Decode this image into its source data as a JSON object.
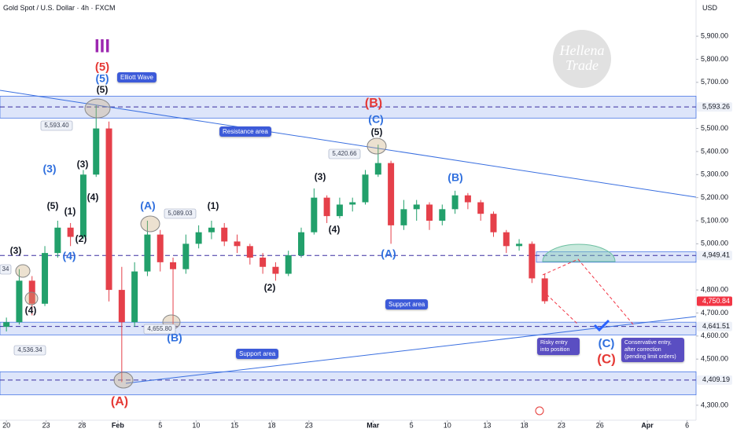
{
  "header": {
    "symbol": "Gold Spot / U.S. Dollar · 4h · FXCM",
    "currency": "USD"
  },
  "watermark": [
    "Hellena",
    "Trade"
  ],
  "chart_data": {
    "type": "candlestick",
    "x": [
      0,
      1,
      2,
      3,
      4,
      5,
      6,
      7,
      8,
      9,
      10,
      11,
      12,
      13,
      14,
      15,
      16,
      17,
      18,
      19,
      20,
      21,
      22,
      23,
      24,
      25,
      26,
      27,
      28,
      29,
      30,
      31,
      32,
      33,
      34,
      35,
      36,
      37,
      38,
      39,
      40,
      41,
      42
    ],
    "open": [
      4640,
      4660,
      4840,
      4740,
      4960,
      5070,
      5030,
      5300,
      5500,
      4800,
      4660,
      4880,
      5040,
      4920,
      4890,
      5000,
      5050,
      5070,
      5010,
      4990,
      4940,
      4900,
      4870,
      4950,
      5050,
      5200,
      5120,
      5170,
      5180,
      5300,
      5350,
      5080,
      5150,
      5170,
      5100,
      5150,
      5210,
      5180,
      5130,
      5050,
      4990,
      5000,
      4850
    ],
    "high": [
      4680,
      4890,
      4860,
      4990,
      5100,
      5090,
      5320,
      5600,
      5530,
      4900,
      4920,
      5100,
      5060,
      4940,
      5040,
      5080,
      5100,
      5090,
      5040,
      5000,
      4960,
      4920,
      4970,
      5070,
      5240,
      5210,
      5200,
      5200,
      5320,
      5430,
      5360,
      5190,
      5190,
      5180,
      5170,
      5230,
      5220,
      5190,
      5140,
      5060,
      5020,
      5010,
      4870
    ],
    "low": [
      4620,
      4650,
      4690,
      4730,
      4940,
      4990,
      5020,
      5290,
      4750,
      4400,
      4640,
      4860,
      4880,
      4650,
      4870,
      4980,
      5020,
      4990,
      4960,
      4910,
      4870,
      4840,
      4860,
      4940,
      5040,
      5090,
      5110,
      5140,
      5170,
      5290,
      5000,
      5060,
      5100,
      5060,
      5080,
      5130,
      5150,
      5100,
      5030,
      4960,
      4970,
      4830,
      4740
    ],
    "close": [
      4660,
      4840,
      4740,
      4960,
      5070,
      5030,
      5300,
      5500,
      4800,
      4660,
      4880,
      5040,
      4920,
      4890,
      5000,
      5050,
      5070,
      5010,
      4990,
      4940,
      4900,
      4870,
      4950,
      5050,
      5200,
      5120,
      5170,
      5180,
      5300,
      5350,
      5080,
      5150,
      5170,
      5100,
      5150,
      5210,
      5180,
      5130,
      5050,
      4990,
      5000,
      4850,
      4750.84
    ],
    "up_color": "#22a06b",
    "down_color": "#e5404a",
    "xlim": [
      -0.5,
      53.8
    ],
    "ylim": [
      4235,
      6057
    ],
    "xticks": [
      {
        "value": 0,
        "label": "20"
      },
      {
        "value": 3.1,
        "label": "23"
      },
      {
        "value": 5.9,
        "label": "28"
      },
      {
        "value": 8.7,
        "label": "Feb"
      },
      {
        "value": 12,
        "label": "5"
      },
      {
        "value": 14.8,
        "label": "10"
      },
      {
        "value": 17.8,
        "label": "15"
      },
      {
        "value": 20.7,
        "label": "18"
      },
      {
        "value": 23.6,
        "label": "23"
      },
      {
        "value": 28.6,
        "label": "Mar"
      },
      {
        "value": 31.6,
        "label": "5"
      },
      {
        "value": 34.4,
        "label": "10"
      },
      {
        "value": 37.5,
        "label": "13"
      },
      {
        "value": 40.4,
        "label": "18"
      },
      {
        "value": 43.3,
        "label": "23"
      },
      {
        "value": 46.3,
        "label": "26"
      },
      {
        "value": 50,
        "label": "Apr"
      },
      {
        "value": 53.1,
        "label": "6"
      }
    ],
    "yticks": [
      {
        "value": 5900,
        "label": "5,900.00"
      },
      {
        "value": 5800,
        "label": "5,800.00"
      },
      {
        "value": 5700,
        "label": "5,700.00"
      },
      {
        "value": 5500,
        "label": "5,500.00"
      },
      {
        "value": 5400,
        "label": "5,400.00"
      },
      {
        "value": 5300,
        "label": "5,300.00"
      },
      {
        "value": 5200,
        "label": "5,200.00"
      },
      {
        "value": 5100,
        "label": "5,100.00"
      },
      {
        "value": 5000,
        "label": "5,000.00"
      },
      {
        "value": 4800,
        "label": "4,800.00"
      },
      {
        "value": 4700,
        "label": "4,700.00"
      },
      {
        "value": 4600,
        "label": "4,600.00"
      },
      {
        "value": 4500,
        "label": "4,500.00"
      },
      {
        "value": 4300,
        "label": "4,300.00"
      }
    ],
    "zones": [
      {
        "from": 5545,
        "to": 5640
      },
      {
        "from": 4605,
        "to": 4660
      },
      {
        "from": 4345,
        "to": 4445
      },
      {
        "from": 4920,
        "to": 4965
      }
    ],
    "levels": [
      {
        "value": 5593.26,
        "label": "5,593.26",
        "color": "#eef1f8"
      },
      {
        "value": 4949.41,
        "label": "4,949.41",
        "color": "#eef1f8"
      },
      {
        "value": 4750.84,
        "label": "4,750.84",
        "color": "#f23645"
      },
      {
        "value": 4641.51,
        "label": "4,641.51",
        "color": "#eef1f8"
      },
      {
        "value": 4409.19,
        "label": "4,409.19",
        "color": "#eef1f8"
      }
    ],
    "wave_labels": [
      {
        "text": "III",
        "color": "#9c27b0"
      },
      {
        "text": "(5)",
        "color": "#e53935"
      },
      {
        "text": "(5)",
        "color": "#2f6fde"
      },
      {
        "text": "(5)",
        "color": "#131722"
      },
      {
        "text": "(3)",
        "color": "#2f6fde"
      },
      {
        "text": "(3)",
        "color": "#131722"
      },
      {
        "text": "(5)",
        "color": "#131722"
      },
      {
        "text": "(1)",
        "color": "#131722"
      },
      {
        "text": "(2)",
        "color": "#131722"
      },
      {
        "text": "(4)",
        "color": "#2f6fde"
      },
      {
        "text": "(4)",
        "color": "#131722"
      },
      {
        "text": "(3)",
        "color": "#131722"
      },
      {
        "text": "(4)",
        "color": "#131722"
      },
      {
        "text": "(A)",
        "color": "#2f6fde"
      },
      {
        "text": "(B)",
        "color": "#2f6fde"
      },
      {
        "text": "(1)",
        "color": "#131722"
      },
      {
        "text": "(2)",
        "color": "#131722"
      },
      {
        "text": "(3)",
        "color": "#131722"
      },
      {
        "text": "(4)",
        "color": "#131722"
      },
      {
        "text": "(B)",
        "color": "#e53935"
      },
      {
        "text": "(C)",
        "color": "#2f6fde"
      },
      {
        "text": "(5)",
        "color": "#131722"
      },
      {
        "text": "(A)",
        "color": "#2f6fde"
      },
      {
        "text": "(B)",
        "color": "#2f6fde"
      },
      {
        "text": "(A)",
        "color": "#e53935"
      },
      {
        "text": "(C)",
        "color": "#2f6fde"
      },
      {
        "text": "(C)",
        "color": "#e53935"
      }
    ],
    "price_callouts": [
      "5,593.40",
      "5,089.03",
      "5,420.66",
      "4,655.80",
      "4,536.34",
      "34"
    ],
    "notes": [
      "Elliott Wave",
      "Resistance area",
      "Support area",
      "Support area",
      "Risky entry into position",
      "Conservative entry, after correction (pending limit orders)"
    ]
  }
}
